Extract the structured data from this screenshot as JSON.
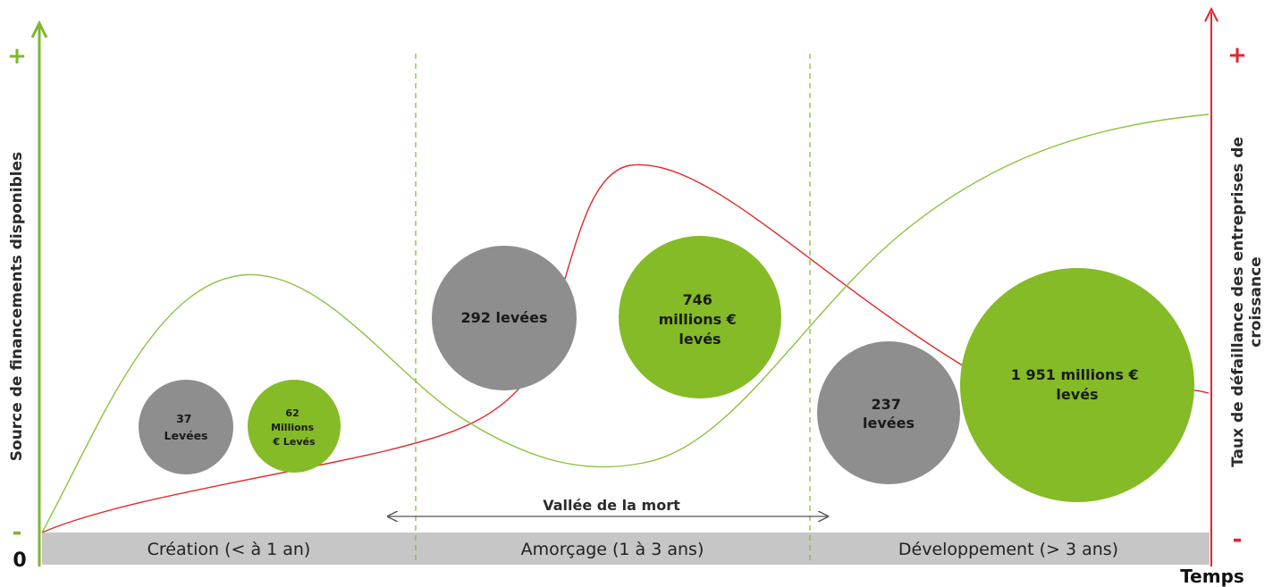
{
  "left_axis": {
    "title": "Source de financements disponibles",
    "plus": "+",
    "minus": "-",
    "zero": "0",
    "color": "#7db72f"
  },
  "right_axis": {
    "title_line1": "Taux de défaillance des entreprises de",
    "title_line2": "croissance",
    "plus": "+",
    "minus": "-",
    "color": "#e3262b"
  },
  "x_axis": {
    "title": "Temps"
  },
  "phases": [
    {
      "label": "Création (< à 1 an)"
    },
    {
      "label": "Amorçage (1 à 3 ans)"
    },
    {
      "label": "Développement (> 3 ans)"
    }
  ],
  "valley": {
    "label": "Vallée de la mort"
  },
  "bubbles": {
    "creation_count": [
      "37",
      "Levées"
    ],
    "creation_amount": [
      "62",
      "Millions",
      "€ Levés"
    ],
    "amorcage_count": [
      "292 levées"
    ],
    "amorcage_amount": [
      "746",
      "millions €",
      "levés"
    ],
    "developpement_count": [
      "237",
      "levées"
    ],
    "developpement_amount": [
      "1 951 millions €",
      "levés"
    ]
  },
  "colors": {
    "green": "#84bb26",
    "grey": "#8e8e8e",
    "red": "#e3262b",
    "band": "#c6c6c6",
    "curve_green": "#8cc33f"
  }
}
